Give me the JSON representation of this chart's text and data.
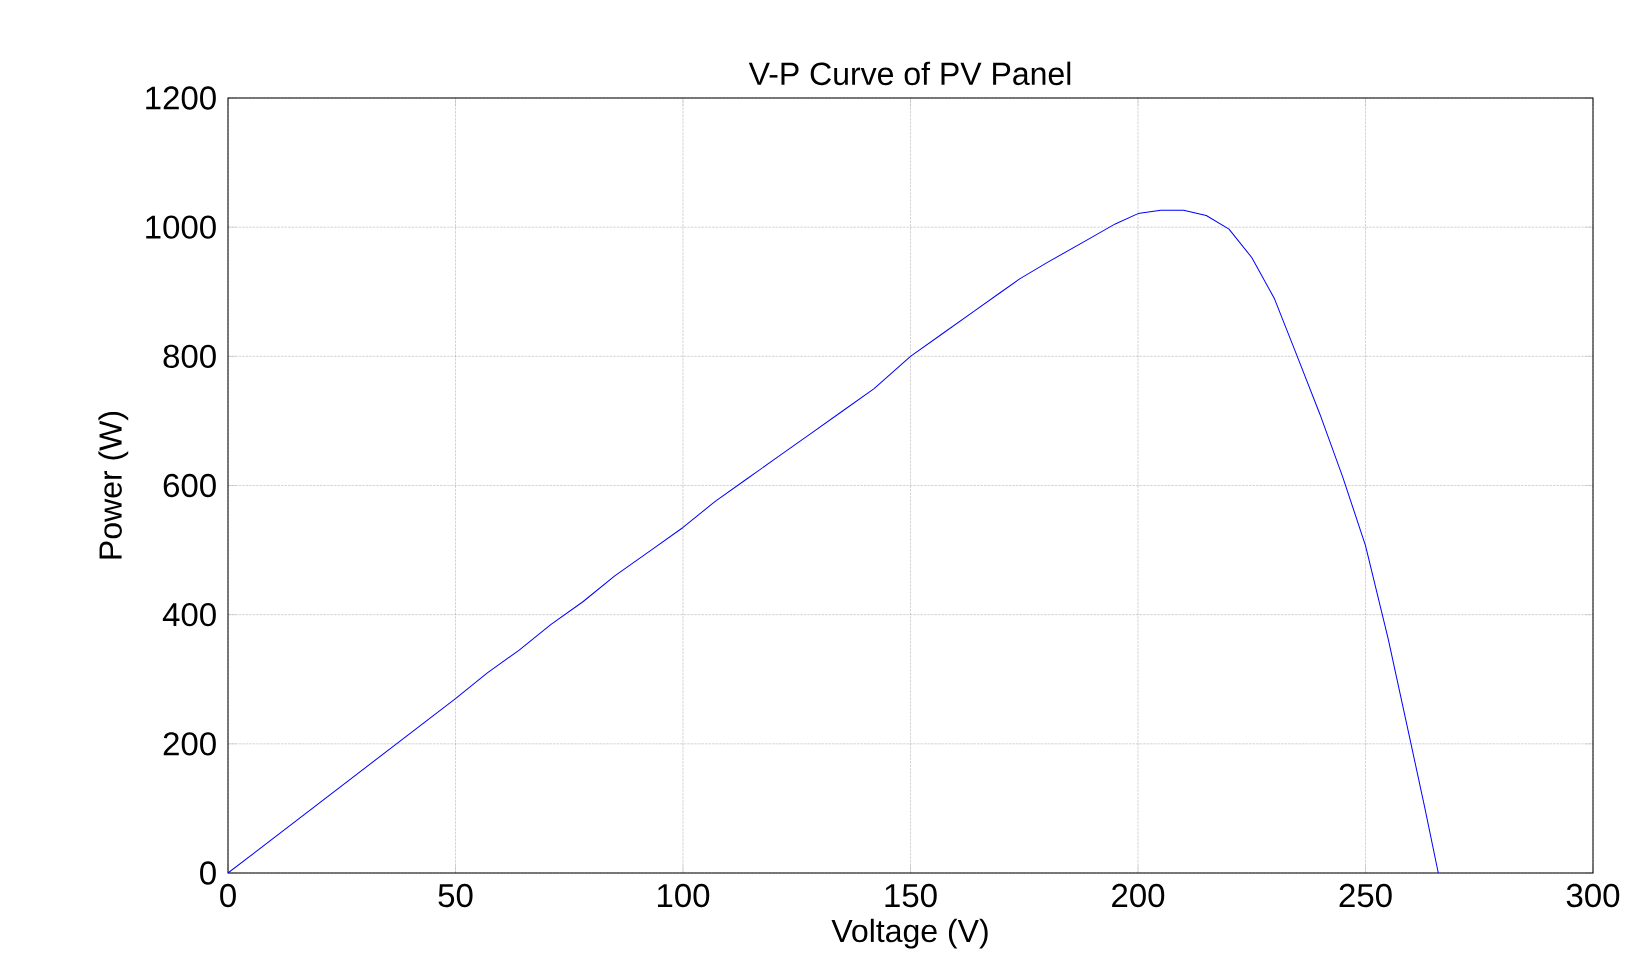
{
  "chart_data": {
    "type": "line",
    "title": "V-P Curve of PV Panel",
    "xlabel": "Voltage (V)",
    "ylabel": "Power (W)",
    "x": [
      0,
      50,
      57,
      64,
      71,
      78,
      85,
      93,
      100,
      107,
      114,
      121,
      128,
      135,
      142,
      150,
      157,
      164,
      170,
      174,
      180,
      185,
      190,
      195,
      200,
      205,
      210,
      215,
      220,
      225,
      230,
      235,
      240,
      245,
      250,
      255,
      260,
      263,
      266
    ],
    "series": [
      {
        "color": "#0000ff",
        "values": [
          0,
          270,
          310,
          345,
          385,
          420,
          460,
          500,
          535,
          575,
          610,
          645,
          680,
          715,
          750,
          800,
          835,
          870,
          900,
          920,
          945,
          965,
          985,
          1005,
          1021,
          1026,
          1026,
          1018,
          997,
          953,
          889,
          800,
          710,
          613,
          507,
          362,
          200,
          102,
          0
        ]
      }
    ],
    "xlim": [
      0,
      300
    ],
    "ylim": [
      0,
      1200
    ],
    "xticks": [
      0,
      50,
      100,
      150,
      200,
      250,
      300
    ],
    "yticks": [
      0,
      200,
      400,
      600,
      800,
      1000,
      1200
    ],
    "grid": true,
    "marker": "none",
    "line_style": "solid"
  }
}
